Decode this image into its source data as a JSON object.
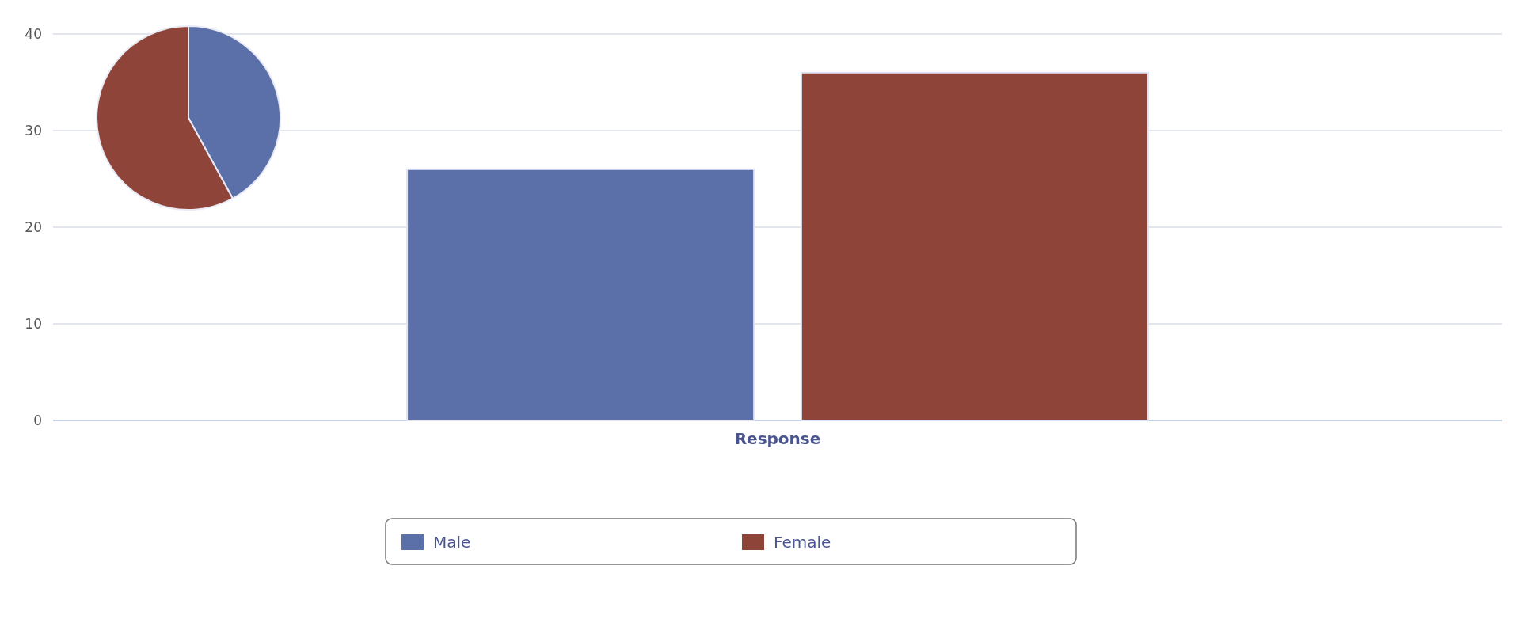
{
  "chart_data": [
    {
      "type": "bar",
      "categories": [
        "Response"
      ],
      "series": [
        {
          "name": "Male",
          "color": "#5b6fa8",
          "values": [
            26
          ]
        },
        {
          "name": "Female",
          "color": "#8e4438",
          "values": [
            36
          ]
        }
      ],
      "ylim": [
        0,
        40
      ],
      "yticks": [
        0,
        10,
        20,
        30,
        40
      ],
      "grid": "y",
      "legend": "bottom"
    },
    {
      "type": "pie",
      "categories": [
        null,
        null
      ],
      "values": [
        42,
        58
      ],
      "colors": [
        "#5b6fa8",
        "#8e4438"
      ]
    }
  ]
}
